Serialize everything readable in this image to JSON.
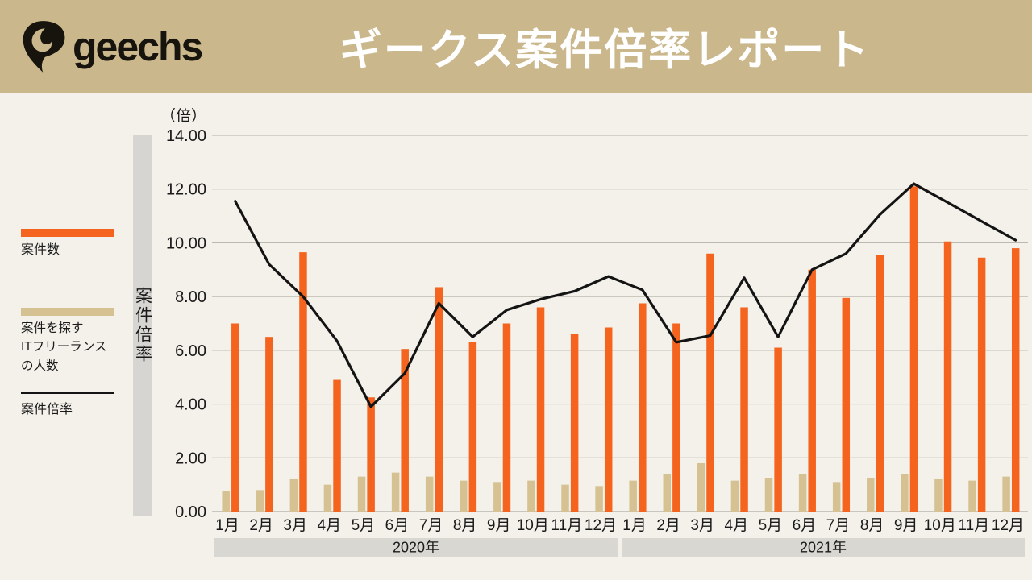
{
  "header": {
    "brand": "geechs",
    "title": "ギークス案件倍率レポート",
    "bg_color": "#cab78c",
    "title_color": "#ffffff"
  },
  "legend": {
    "items": [
      {
        "label": "案件数",
        "swatch": "bar",
        "color": "#f4641e"
      },
      {
        "label": "案件を探す\nITフリーランス\nの人数",
        "swatch": "bar",
        "color": "#d6c193"
      },
      {
        "label": "案件倍率",
        "swatch": "line",
        "color": "#141414"
      }
    ]
  },
  "y_axis": {
    "unit_label": "（倍）",
    "axis_title": "案件倍率"
  },
  "x_axis": {
    "year_labels": [
      "2020年",
      "2021年"
    ]
  },
  "chart_data": {
    "type": "bar+line combo",
    "title": "ギークス案件倍率レポート",
    "ylabel": "案件倍率",
    "y_unit": "（倍）",
    "ylim": [
      0,
      14
    ],
    "ytick_step": 2,
    "ytick_decimals": 2,
    "grid": true,
    "legend_position": "left",
    "categories": [
      "1月",
      "2月",
      "3月",
      "4月",
      "5月",
      "6月",
      "7月",
      "8月",
      "9月",
      "10月",
      "11月",
      "12月",
      "1月",
      "2月",
      "3月",
      "4月",
      "5月",
      "6月",
      "7月",
      "8月",
      "9月",
      "10月",
      "11月",
      "12月"
    ],
    "year_groups": [
      {
        "label": "2020年",
        "start": 0,
        "end": 11
      },
      {
        "label": "2021年",
        "start": 12,
        "end": 23
      }
    ],
    "series": [
      {
        "name": "案件数",
        "type": "bar",
        "color": "#f4641e",
        "values": [
          7.0,
          6.5,
          9.65,
          4.9,
          4.25,
          6.05,
          8.35,
          6.3,
          7.0,
          7.6,
          6.6,
          6.85,
          7.75,
          7.0,
          9.6,
          7.6,
          6.1,
          9.0,
          7.95,
          9.55,
          12.1,
          10.05,
          9.45,
          9.8
        ]
      },
      {
        "name": "案件を探すITフリーランスの人数",
        "type": "bar",
        "color": "#d6c193",
        "values": [
          0.75,
          0.8,
          1.2,
          1.0,
          1.3,
          1.45,
          1.3,
          1.15,
          1.1,
          1.15,
          1.0,
          0.95,
          1.15,
          1.4,
          1.8,
          1.15,
          1.25,
          1.4,
          1.1,
          1.25,
          1.4,
          1.2,
          1.15,
          1.3
        ]
      },
      {
        "name": "案件倍率",
        "type": "line",
        "color": "#141414",
        "values": [
          11.55,
          9.2,
          8.0,
          6.35,
          3.9,
          5.15,
          7.75,
          6.5,
          7.5,
          7.9,
          8.2,
          8.75,
          8.25,
          6.3,
          6.55,
          8.7,
          6.5,
          9.0,
          9.6,
          11.05,
          12.2,
          11.5,
          10.8,
          10.1
        ]
      }
    ],
    "colors": {
      "background": "#f4f1ea",
      "gridline": "#b2afa8",
      "baseline": "#9c9a95",
      "year_band": "#d9d7d2",
      "axis_strip": "#d6d5d2",
      "text": "#1a1a1a"
    }
  }
}
